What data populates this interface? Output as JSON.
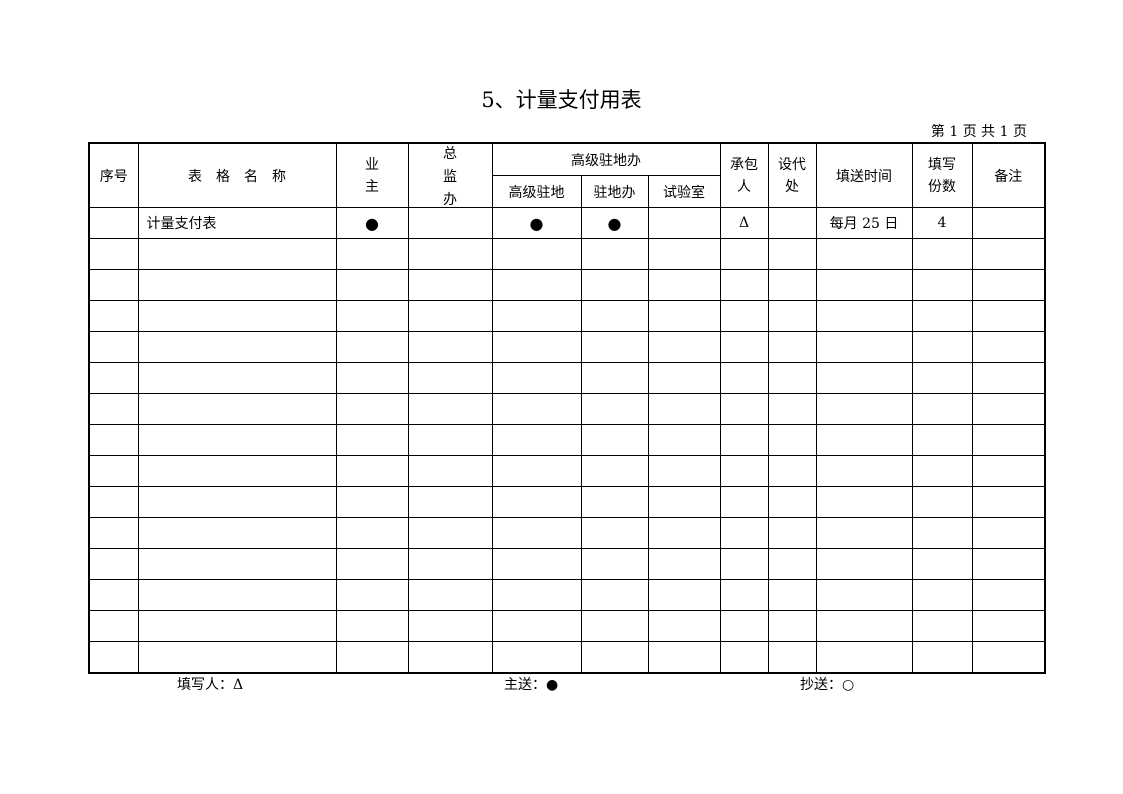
{
  "title": "5、计量支付用表",
  "page_info": "第 1 页  共 1 页",
  "headers": {
    "seq": "序号",
    "form_name": "表　格　名　称",
    "owner": [
      "业",
      "主"
    ],
    "chief_supervisor": [
      "总",
      "监",
      "办"
    ],
    "senior_office_group": "高级驻地办",
    "senior_resident": "高级驻地",
    "resident_office": "驻地办",
    "lab": "试验室",
    "contractor": [
      "承包",
      "人"
    ],
    "design_office": [
      "设代",
      "处"
    ],
    "submit_time": "填送时间",
    "copies": [
      "填写",
      "份数"
    ],
    "remarks": "备注"
  },
  "rows": [
    {
      "seq": "",
      "name": "计量支付表",
      "owner": "●",
      "chief": "",
      "senior": "●",
      "resident": "●",
      "lab": "",
      "contractor": "Δ",
      "design": "",
      "time": "每月 25 日",
      "copies": "4",
      "remarks": ""
    }
  ],
  "empty_rows": 14,
  "footer": {
    "filler": "填写人：Δ",
    "main_send": "主送：●",
    "copy_send": "抄送：○"
  }
}
